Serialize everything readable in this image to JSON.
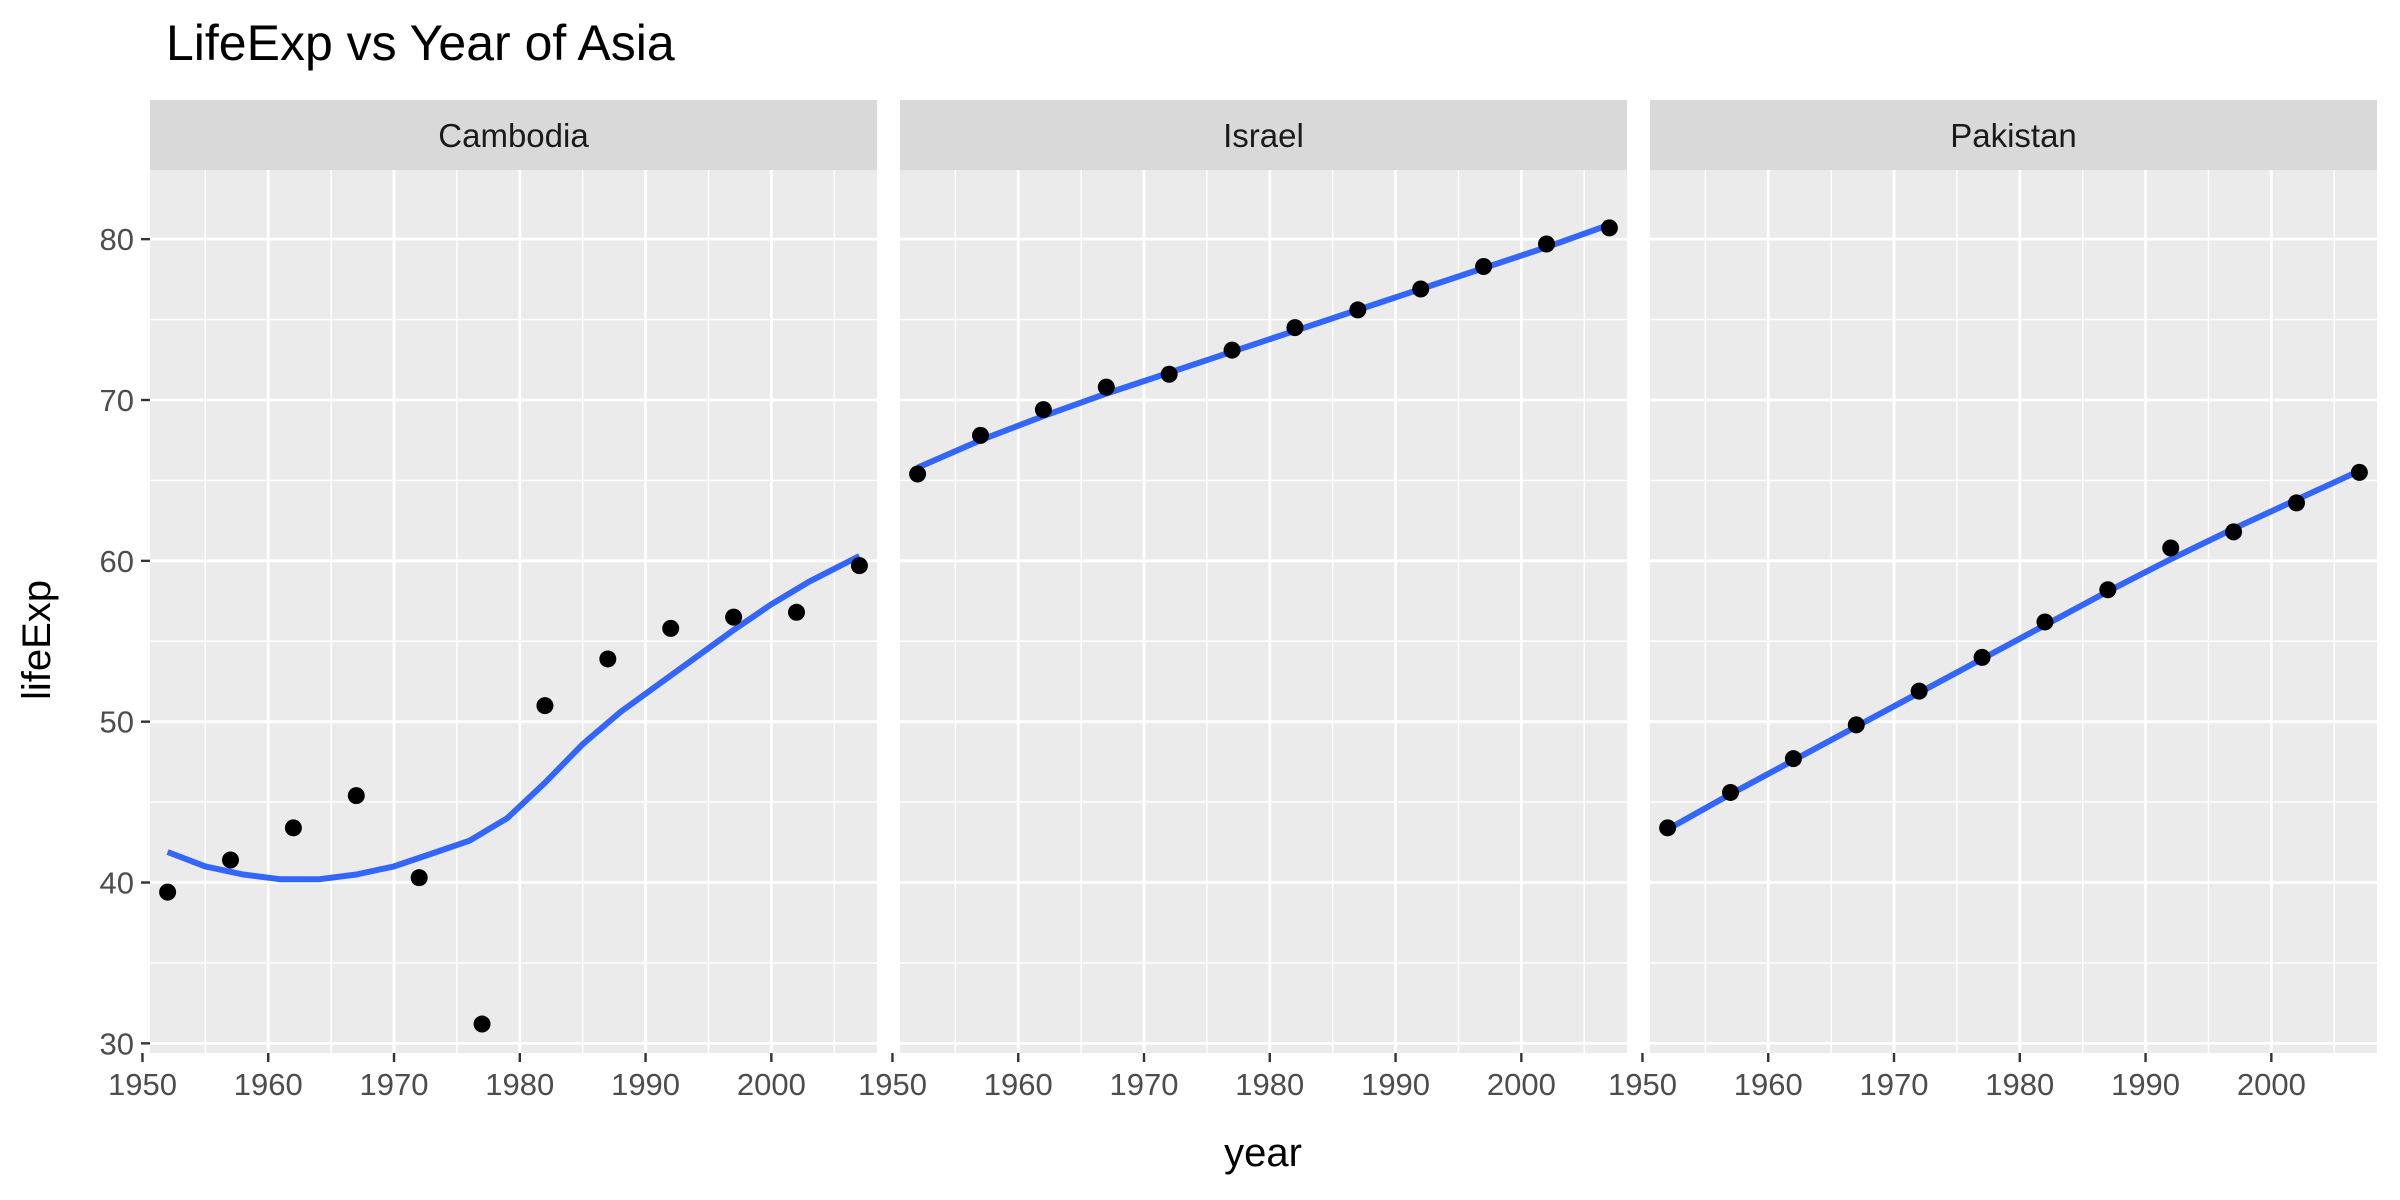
{
  "chart_data": {
    "type": "scatter",
    "title": "LifeExp vs Year of Asia",
    "xlabel": "year",
    "ylabel": "lifeExp",
    "xlim": [
      1950.6,
      2008.4
    ],
    "ylim": [
      29.4,
      84.3
    ],
    "x_ticks": [
      1950,
      1960,
      1970,
      1980,
      1990,
      2000
    ],
    "y_ticks": [
      30,
      40,
      50,
      60,
      70,
      80
    ],
    "grid": true,
    "legend": "none",
    "point_color": "#000000",
    "line_color": "#3366FF",
    "panel_background": "#EBEBEB",
    "strip_background": "#D9D9D9",
    "facets": [
      {
        "label": "Cambodia",
        "points": [
          {
            "x": 1952,
            "y": 39.4
          },
          {
            "x": 1957,
            "y": 41.4
          },
          {
            "x": 1962,
            "y": 43.4
          },
          {
            "x": 1967,
            "y": 45.4
          },
          {
            "x": 1972,
            "y": 40.3
          },
          {
            "x": 1977,
            "y": 31.2
          },
          {
            "x": 1982,
            "y": 51.0
          },
          {
            "x": 1987,
            "y": 53.9
          },
          {
            "x": 1992,
            "y": 55.8
          },
          {
            "x": 1997,
            "y": 56.5
          },
          {
            "x": 2002,
            "y": 56.8
          },
          {
            "x": 2007,
            "y": 59.7
          }
        ],
        "smooth": [
          {
            "x": 1952,
            "y": 41.9
          },
          {
            "x": 1955,
            "y": 41.0
          },
          {
            "x": 1958,
            "y": 40.5
          },
          {
            "x": 1961,
            "y": 40.2
          },
          {
            "x": 1964,
            "y": 40.2
          },
          {
            "x": 1967,
            "y": 40.5
          },
          {
            "x": 1970,
            "y": 41.0
          },
          {
            "x": 1973,
            "y": 41.8
          },
          {
            "x": 1976,
            "y": 42.6
          },
          {
            "x": 1979,
            "y": 44.0
          },
          {
            "x": 1982,
            "y": 46.2
          },
          {
            "x": 1985,
            "y": 48.6
          },
          {
            "x": 1988,
            "y": 50.6
          },
          {
            "x": 1991,
            "y": 52.3
          },
          {
            "x": 1994,
            "y": 54.0
          },
          {
            "x": 1997,
            "y": 55.7
          },
          {
            "x": 2000,
            "y": 57.3
          },
          {
            "x": 2003,
            "y": 58.7
          },
          {
            "x": 2007,
            "y": 60.3
          }
        ]
      },
      {
        "label": "Israel",
        "points": [
          {
            "x": 1952,
            "y": 65.4
          },
          {
            "x": 1957,
            "y": 67.8
          },
          {
            "x": 1962,
            "y": 69.4
          },
          {
            "x": 1967,
            "y": 70.8
          },
          {
            "x": 1972,
            "y": 71.6
          },
          {
            "x": 1977,
            "y": 73.1
          },
          {
            "x": 1982,
            "y": 74.5
          },
          {
            "x": 1987,
            "y": 75.6
          },
          {
            "x": 1992,
            "y": 76.9
          },
          {
            "x": 1997,
            "y": 78.3
          },
          {
            "x": 2002,
            "y": 79.7
          },
          {
            "x": 2007,
            "y": 80.7
          }
        ],
        "smooth": [
          {
            "x": 1952,
            "y": 65.8
          },
          {
            "x": 1957,
            "y": 67.5
          },
          {
            "x": 1962,
            "y": 69.0
          },
          {
            "x": 1967,
            "y": 70.4
          },
          {
            "x": 1972,
            "y": 71.7
          },
          {
            "x": 1977,
            "y": 73.0
          },
          {
            "x": 1982,
            "y": 74.3
          },
          {
            "x": 1987,
            "y": 75.6
          },
          {
            "x": 1992,
            "y": 76.9
          },
          {
            "x": 1997,
            "y": 78.2
          },
          {
            "x": 2002,
            "y": 79.5
          },
          {
            "x": 2007,
            "y": 80.9
          }
        ]
      },
      {
        "label": "Pakistan",
        "points": [
          {
            "x": 1952,
            "y": 43.4
          },
          {
            "x": 1957,
            "y": 45.6
          },
          {
            "x": 1962,
            "y": 47.7
          },
          {
            "x": 1967,
            "y": 49.8
          },
          {
            "x": 1972,
            "y": 51.9
          },
          {
            "x": 1977,
            "y": 54.0
          },
          {
            "x": 1982,
            "y": 56.2
          },
          {
            "x": 1987,
            "y": 58.2
          },
          {
            "x": 1992,
            "y": 60.8
          },
          {
            "x": 1997,
            "y": 61.8
          },
          {
            "x": 2002,
            "y": 63.6
          },
          {
            "x": 2007,
            "y": 65.5
          }
        ],
        "smooth": [
          {
            "x": 1952,
            "y": 43.3
          },
          {
            "x": 1957,
            "y": 45.5
          },
          {
            "x": 1962,
            "y": 47.6
          },
          {
            "x": 1967,
            "y": 49.7
          },
          {
            "x": 1972,
            "y": 51.8
          },
          {
            "x": 1977,
            "y": 53.9
          },
          {
            "x": 1982,
            "y": 56.0
          },
          {
            "x": 1987,
            "y": 58.1
          },
          {
            "x": 1992,
            "y": 60.1
          },
          {
            "x": 1997,
            "y": 62.0
          },
          {
            "x": 2002,
            "y": 63.8
          },
          {
            "x": 2007,
            "y": 65.6
          }
        ]
      }
    ]
  }
}
